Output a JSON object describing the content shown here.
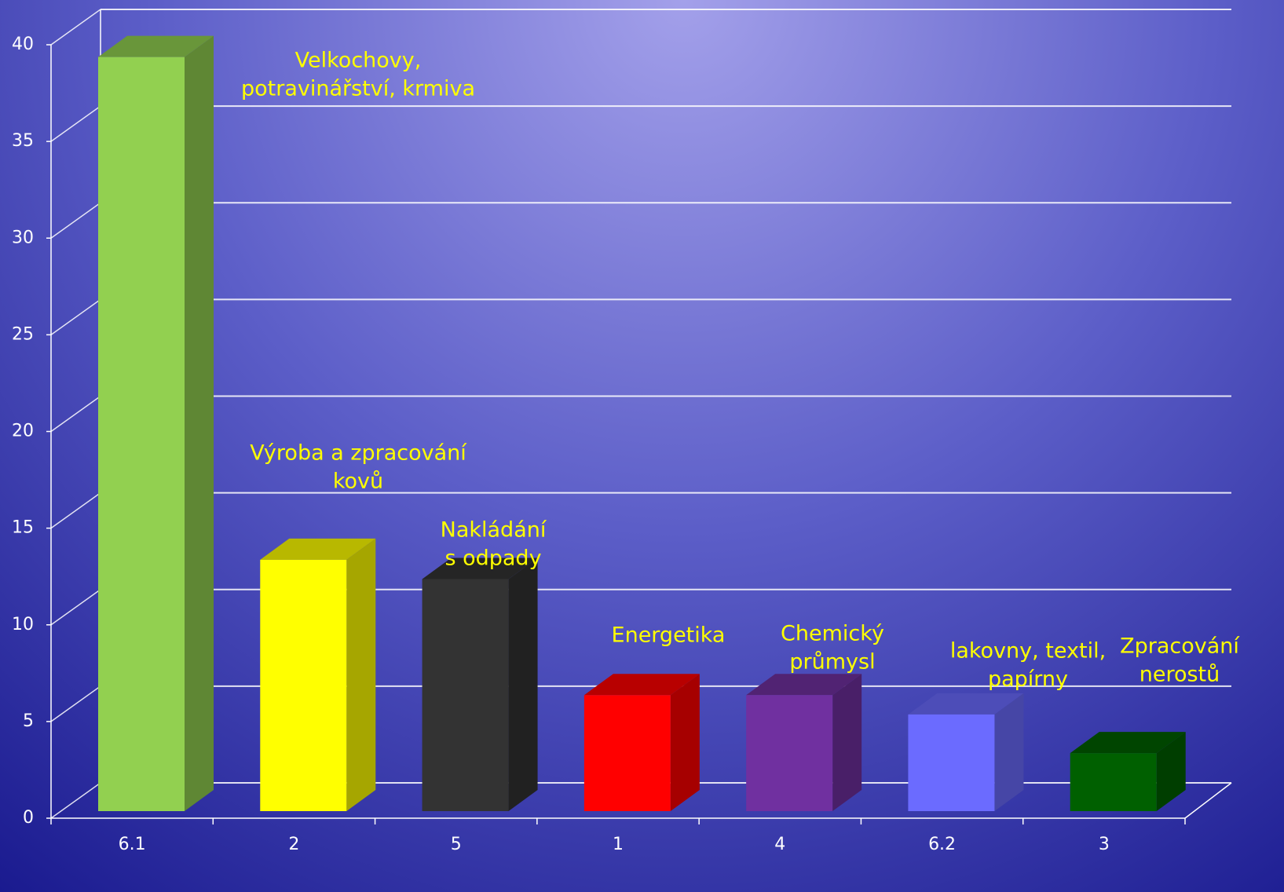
{
  "chart_data": {
    "type": "bar3d",
    "categories": [
      "6.1",
      "2",
      "5",
      "1",
      "4",
      "6.2",
      "3"
    ],
    "values": [
      39,
      13,
      12,
      6,
      6,
      5,
      3
    ],
    "colors": [
      "#92d050",
      "#ffff00",
      "#333333",
      "#ff0000",
      "#7030a0",
      "#6b6bff",
      "#006000"
    ],
    "annotations": [
      [
        "Velkochovy,",
        "potravinářství, krmiva"
      ],
      [
        "Výroba a zpracování",
        "kovů"
      ],
      [
        "Nakládání",
        "s odpady"
      ],
      [
        "Energetika"
      ],
      [
        "Chemický",
        "průmysl"
      ],
      [
        "lakovny, textil,",
        "papírny"
      ],
      [
        "Zpracování",
        "nerostů"
      ]
    ],
    "ylim": [
      0,
      40
    ],
    "yticks": [
      0,
      5,
      10,
      15,
      20,
      25,
      30,
      35,
      40
    ],
    "grid": true
  }
}
